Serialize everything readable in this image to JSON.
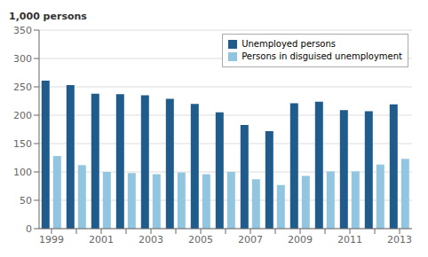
{
  "chart_data": {
    "type": "bar",
    "ylabel": "1,000 persons",
    "categories": [
      "1999",
      null,
      "2001",
      null,
      "2003",
      null,
      "2005",
      null,
      "2007",
      null,
      "2009",
      null,
      "2011",
      null,
      "2013"
    ],
    "series": [
      {
        "name": "Unemployed persons",
        "color": "#1F5C8B",
        "values": [
          261,
          253,
          238,
          237,
          235,
          229,
          220,
          205,
          183,
          172,
          221,
          224,
          209,
          207,
          219
        ]
      },
      {
        "name": "Persons in disguised unemployment",
        "color": "#92C5E0",
        "values": [
          128,
          112,
          100,
          98,
          96,
          99,
          96,
          100,
          87,
          77,
          93,
          101,
          101,
          113,
          123
        ]
      }
    ],
    "ylim": [
      0,
      350
    ],
    "yticks": [
      0,
      50,
      100,
      150,
      200,
      250,
      300,
      350
    ],
    "grid": true,
    "legend": "upper right"
  }
}
